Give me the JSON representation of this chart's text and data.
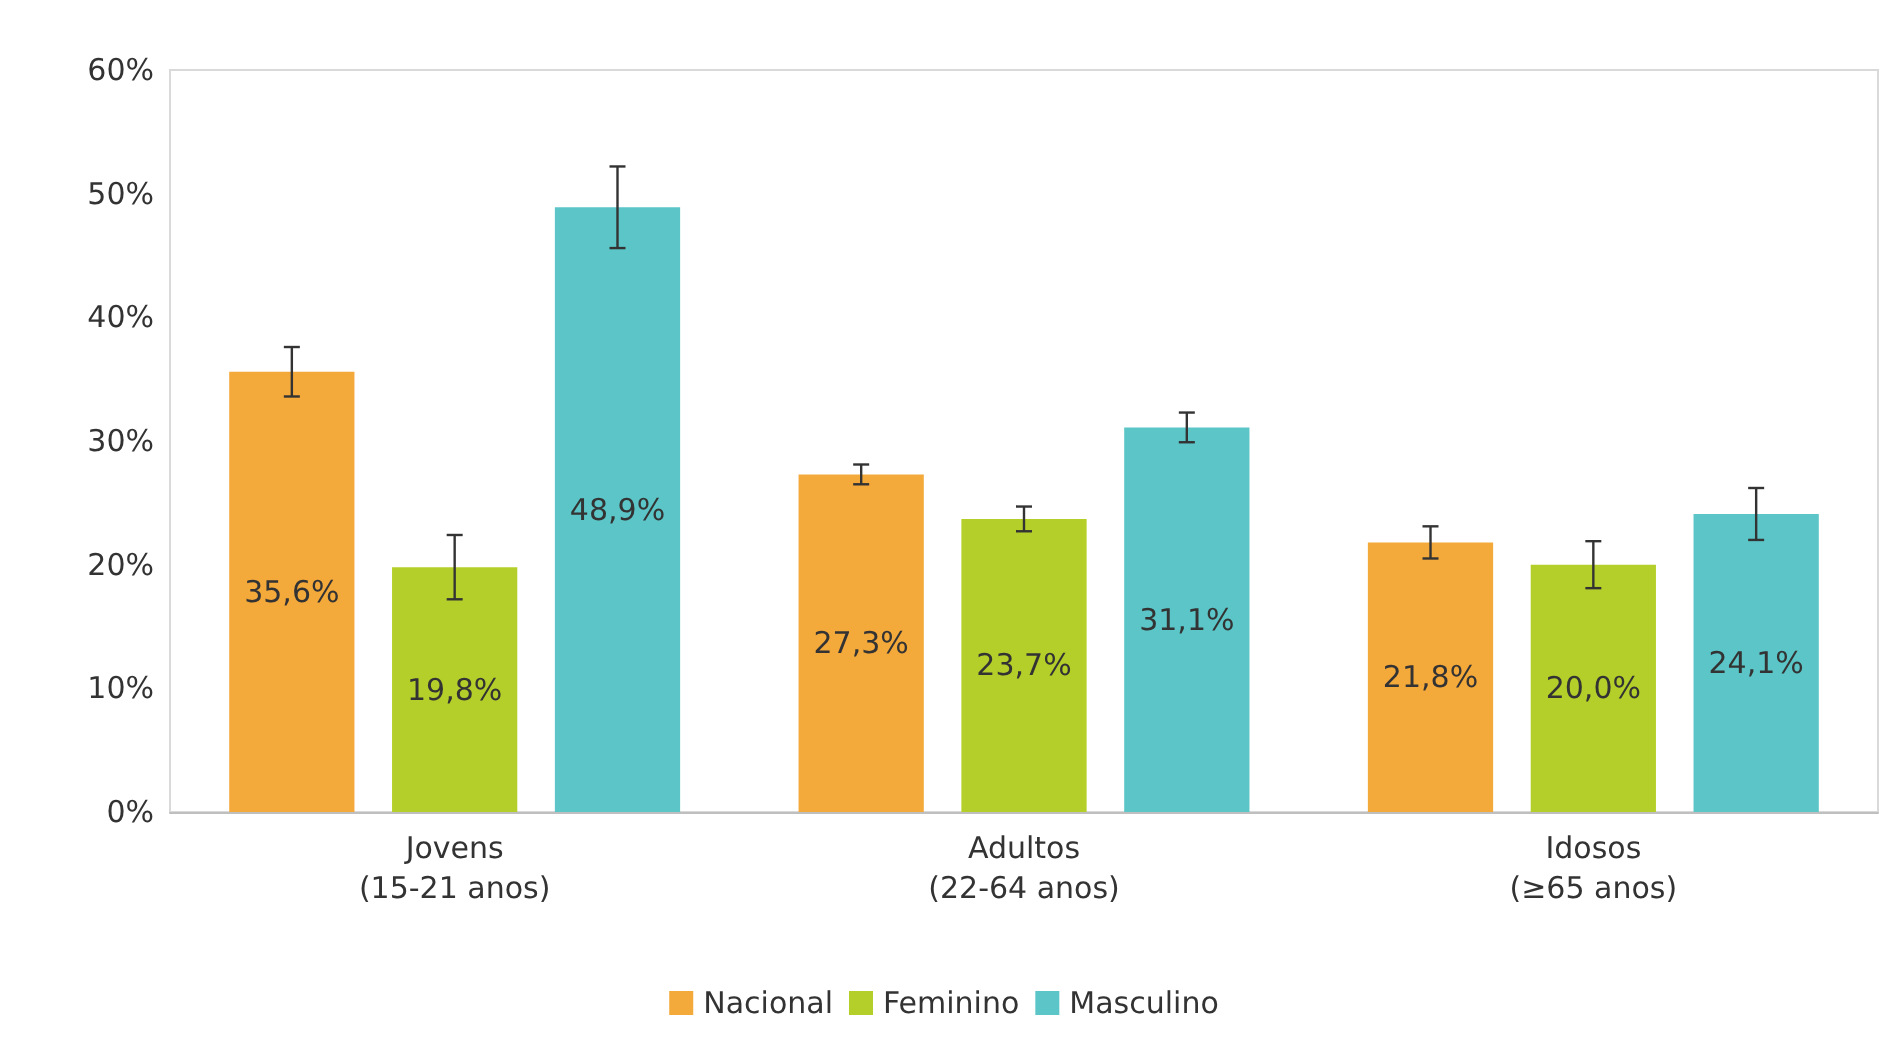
{
  "chart_data": {
    "type": "bar",
    "categories": [
      "Jovens\n(15-21 anos)",
      "Adultos\n(22-64 anos)",
      "Idosos\n(≥65 anos)"
    ],
    "series": [
      {
        "name": "Nacional",
        "color": "#f4a93b",
        "values": [
          35.6,
          27.3,
          21.8
        ],
        "errors": [
          2.0,
          0.8,
          1.3
        ],
        "value_labels": [
          "35,6%",
          "27,3%",
          "21,8%"
        ]
      },
      {
        "name": "Feminino",
        "color": "#b5cf2a",
        "values": [
          19.8,
          23.7,
          20.0
        ],
        "errors": [
          2.6,
          1.0,
          1.9
        ],
        "value_labels": [
          "19,8%",
          "23,7%",
          "20,0%"
        ]
      },
      {
        "name": "Masculino",
        "color": "#5bc5c7",
        "values": [
          48.9,
          31.1,
          24.1
        ],
        "errors": [
          3.3,
          1.2,
          2.1
        ],
        "value_labels": [
          "48,9%",
          "31,1%",
          "24,1%"
        ]
      }
    ],
    "ylim": [
      0,
      60
    ],
    "yticks": [
      {
        "value": 0,
        "label": "0%"
      },
      {
        "value": 10,
        "label": "10%"
      },
      {
        "value": 20,
        "label": "20%"
      },
      {
        "value": 30,
        "label": "30%"
      },
      {
        "value": 40,
        "label": "40%"
      },
      {
        "value": 50,
        "label": "50%"
      },
      {
        "value": 60,
        "label": "60%"
      }
    ],
    "grid": false,
    "legend": "bottom"
  }
}
